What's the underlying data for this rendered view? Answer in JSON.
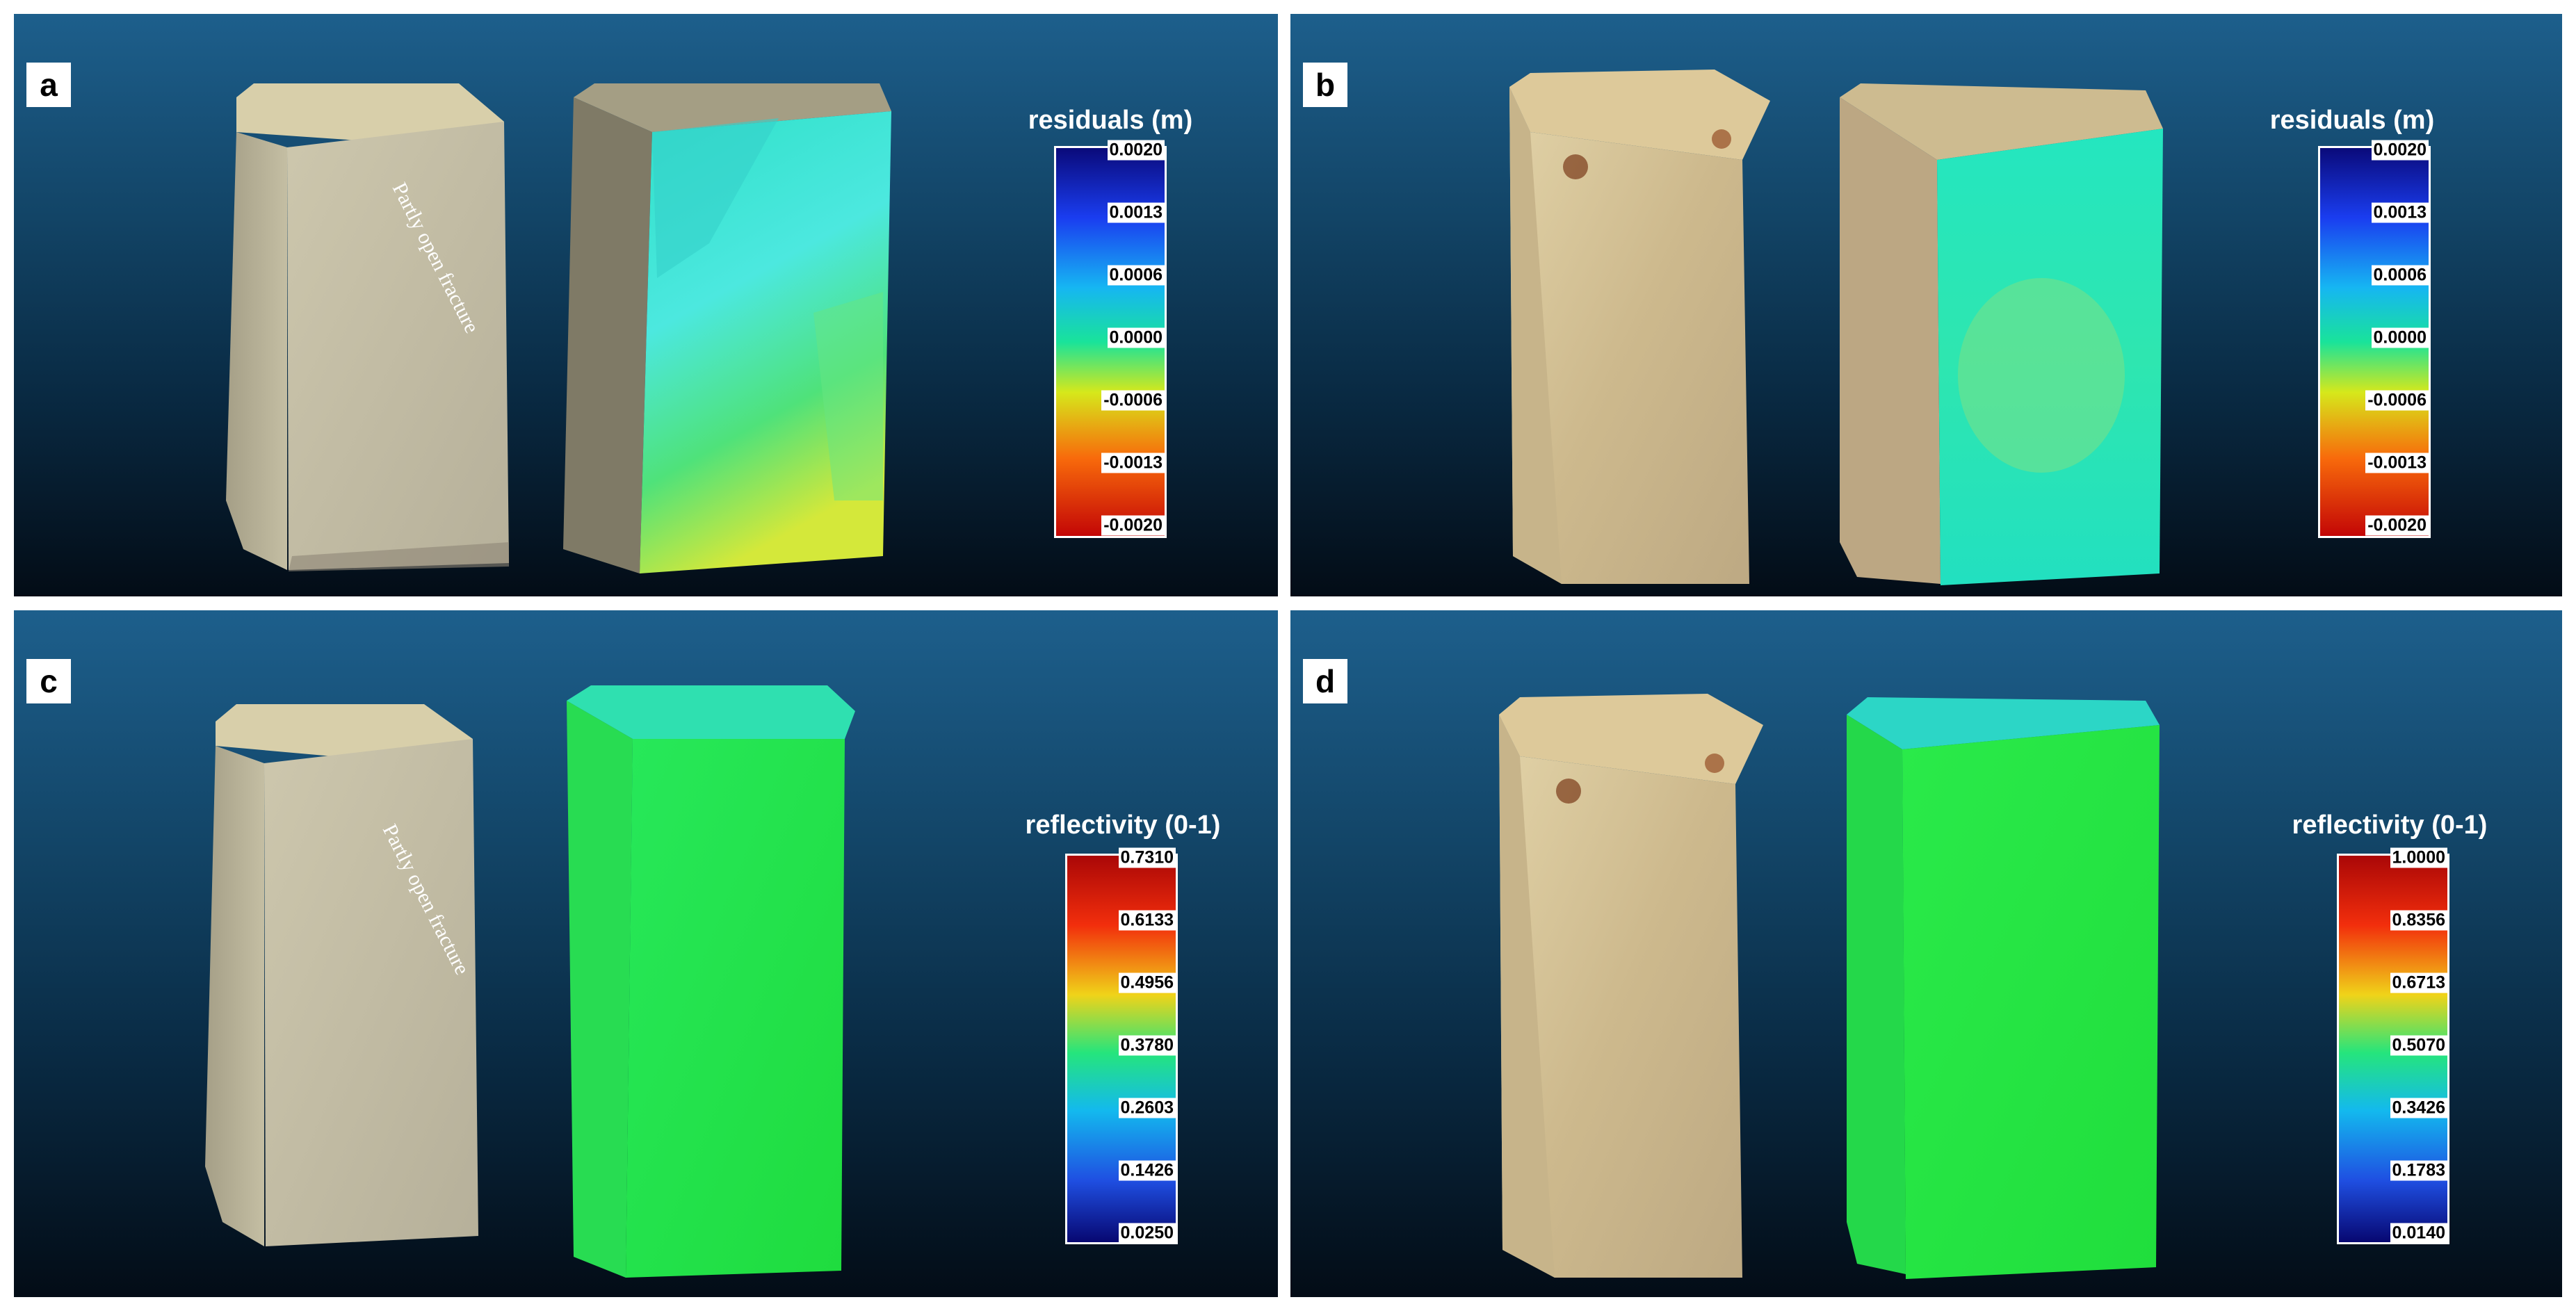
{
  "panels": {
    "a": {
      "label": "a",
      "annotation": "Partly open fracture",
      "colorbar": {
        "title": "residuals (m)",
        "ticks": [
          "0.0020",
          "0.0013",
          "0.0006",
          "0.0000",
          "-0.0006",
          "-0.0013",
          "-0.0020"
        ],
        "scale": "blue-cyan-green-yellow-red (top to bottom)"
      }
    },
    "b": {
      "label": "b",
      "colorbar": {
        "title": "residuals (m)",
        "ticks": [
          "0.0020",
          "0.0013",
          "0.0006",
          "0.0000",
          "-0.0006",
          "-0.0013",
          "-0.0020"
        ],
        "scale": "blue-cyan-green-yellow-red (top to bottom)"
      }
    },
    "c": {
      "label": "c",
      "annotation": "Partly open fracture",
      "colorbar": {
        "title": "reflectivity (0-1)",
        "ticks": [
          "0.7310",
          "0.6133",
          "0.4956",
          "0.3780",
          "0.2603",
          "0.1426",
          "0.0250"
        ],
        "scale": "red-yellow-green-cyan-blue (top to bottom)"
      }
    },
    "d": {
      "label": "d",
      "colorbar": {
        "title": "reflectivity (0-1)",
        "ticks": [
          "1.0000",
          "0.8356",
          "0.6713",
          "0.5070",
          "0.3426",
          "0.1783",
          "0.0140"
        ],
        "scale": "red-yellow-green-cyan-blue (top to bottom)"
      }
    }
  },
  "colors": {
    "background_top": "#1d5f8c",
    "background_bottom": "#030c16",
    "rock": "#cfc6a5",
    "residual_mid": "#19e3b0",
    "reflectivity_mid": "#25e63c"
  }
}
